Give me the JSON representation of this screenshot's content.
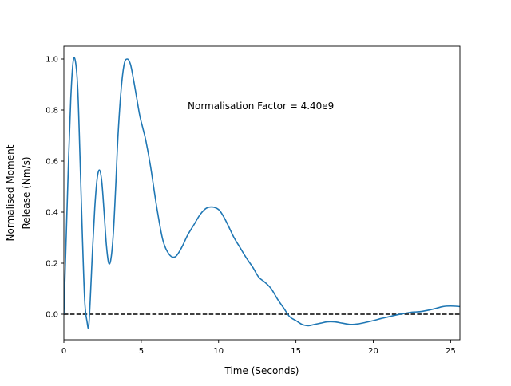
{
  "chart_data": {
    "type": "line",
    "title": "",
    "xlabel": "Time (Seconds)",
    "ylabel_lines": [
      "Normalised Moment",
      "Release (Nm/s)"
    ],
    "xlim": [
      0,
      25.6
    ],
    "ylim": [
      -0.1,
      1.05
    ],
    "xticks": [
      0,
      5,
      10,
      15,
      20,
      25
    ],
    "yticks": [
      0.0,
      0.2,
      0.4,
      0.6,
      0.8,
      1.0
    ],
    "ytick_labels": [
      "0.0",
      "0.2",
      "0.4",
      "0.6",
      "0.8",
      "1.0"
    ],
    "grid": false,
    "annotation": "Normalisation Factor = 4.40e9",
    "reference_line": {
      "y": 0.0,
      "style": "dashed",
      "color": "#000000"
    },
    "series": [
      {
        "color": "#1f77b4",
        "x": [
          0,
          0.15,
          0.3,
          0.45,
          0.6,
          0.75,
          0.9,
          1.05,
          1.2,
          1.35,
          1.5,
          1.6,
          1.7,
          1.85,
          2.0,
          2.15,
          2.3,
          2.45,
          2.6,
          2.75,
          2.9,
          3.05,
          3.2,
          3.35,
          3.5,
          3.7,
          3.9,
          4.1,
          4.3,
          4.5,
          4.7,
          4.9,
          5.1,
          5.3,
          5.6,
          6.0,
          6.4,
          6.8,
          7.2,
          7.6,
          8.0,
          8.4,
          8.8,
          9.2,
          9.6,
          10.0,
          10.3,
          10.6,
          11.0,
          11.4,
          11.8,
          12.2,
          12.6,
          13.0,
          13.4,
          13.8,
          14.2,
          14.6,
          15.0,
          15.4,
          15.8,
          16.2,
          16.6,
          17.0,
          17.5,
          18.0,
          18.5,
          19.0,
          19.5,
          20.0,
          20.5,
          21.0,
          21.5,
          22.0,
          22.5,
          23.0,
          23.5,
          24.0,
          24.5,
          25.0,
          25.6
        ],
        "y": [
          0.0,
          0.3,
          0.6,
          0.85,
          0.99,
          0.99,
          0.88,
          0.6,
          0.3,
          0.05,
          -0.03,
          -0.05,
          0.05,
          0.25,
          0.42,
          0.53,
          0.565,
          0.52,
          0.4,
          0.27,
          0.2,
          0.22,
          0.32,
          0.5,
          0.7,
          0.88,
          0.98,
          1.0,
          0.98,
          0.92,
          0.85,
          0.78,
          0.73,
          0.68,
          0.58,
          0.42,
          0.29,
          0.235,
          0.225,
          0.26,
          0.31,
          0.35,
          0.39,
          0.415,
          0.42,
          0.41,
          0.385,
          0.35,
          0.3,
          0.26,
          0.22,
          0.185,
          0.145,
          0.125,
          0.1,
          0.06,
          0.025,
          -0.01,
          -0.025,
          -0.04,
          -0.045,
          -0.04,
          -0.035,
          -0.03,
          -0.03,
          -0.035,
          -0.04,
          -0.038,
          -0.032,
          -0.025,
          -0.017,
          -0.01,
          -0.003,
          0.003,
          0.008,
          0.01,
          0.015,
          0.022,
          0.03,
          0.032,
          0.03
        ]
      }
    ]
  }
}
